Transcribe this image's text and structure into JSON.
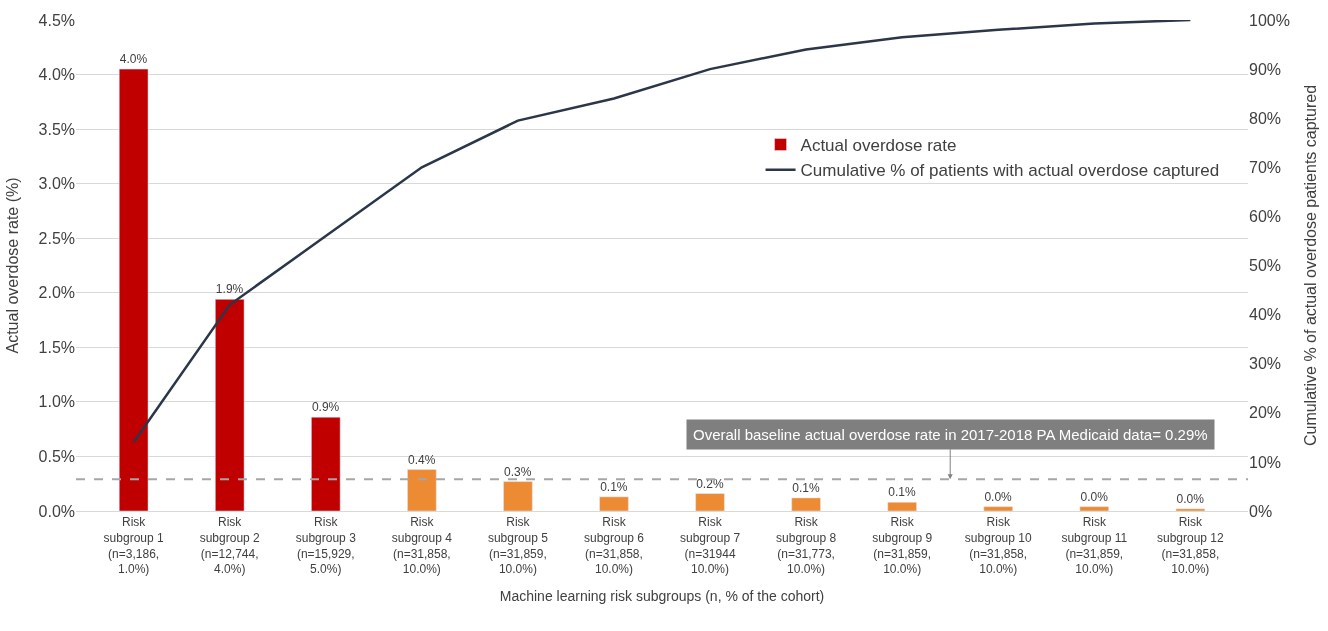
{
  "chart_data": {
    "type": "bar",
    "categories": [
      "Risk\nsubgroup 1\n(n=3,186,\n1.0%)",
      "Risk\nsubgroup 2\n(n=12,744,\n4.0%)",
      "Risk\nsubgroup 3\n(n=15,929,\n5.0%)",
      "Risk\nsubgroup 4\n(n=31,858,\n10.0%)",
      "Risk\nsubgroup 5\n(n=31,859,\n10.0%)",
      "Risk\nsubgroup 6\n(n=31,858,\n10.0%)",
      "Risk\nsubgroup 7\n(n=31944\n10.0%)",
      "Risk\nsubgroup 8\n(n=31,773,\n10.0%)",
      "Risk\nsubgroup 9\n(n=31,859,\n10.0%)",
      "Risk\nsubgroup 10\n(n=31,858,\n10.0%)",
      "Risk\nsubgroup 11\n(n=31,859,\n10.0%)",
      "Risk\nsubgroup 12\n(n=31,858,\n10.0%)"
    ],
    "xlabel": "Machine learning risk subgroups (n, % of the cohort)",
    "ylabel": "Actual overdose rate (%)",
    "y2label": "Cumulative % of actual overdose patients captured",
    "series": [
      {
        "name": "Actual overdose rate",
        "colors": [
          "#c00000",
          "#c00000",
          "#c00000",
          "#ed8b35",
          "#ed8b35",
          "#ed8b35",
          "#ed8b35",
          "#ed8b35",
          "#ed8b35",
          "#ed8b35",
          "#ed8b35",
          "#ed8b35"
        ],
        "values": [
          4.05,
          1.94,
          0.86,
          0.38,
          0.27,
          0.13,
          0.16,
          0.12,
          0.08,
          0.04,
          0.04,
          0.02
        ],
        "value_labels": [
          "4.0%",
          "1.9%",
          "0.9%",
          "0.4%",
          "0.3%",
          "0.1%",
          "0.2%",
          "0.1%",
          "0.1%",
          "0.0%",
          "0.0%",
          "0.0%"
        ]
      },
      {
        "type": "line",
        "name": "Cumulative % of patients with actual overdose captured",
        "color": "#2b3648",
        "axis": "y2",
        "values": [
          14,
          42,
          56,
          70,
          79.5,
          84,
          90,
          94,
          96.5,
          98,
          99.3,
          100
        ]
      }
    ],
    "ylim": [
      0,
      4.5
    ],
    "yticks": [
      {
        "value": 0,
        "label": "0.0%"
      },
      {
        "value": 0.5,
        "label": "0.5%"
      },
      {
        "value": 1,
        "label": "1.0%"
      },
      {
        "value": 1.5,
        "label": "1.5%"
      },
      {
        "value": 2,
        "label": "2.0%"
      },
      {
        "value": 2.5,
        "label": "2.5%"
      },
      {
        "value": 3,
        "label": "3.0%"
      },
      {
        "value": 3.5,
        "label": "3.5%"
      },
      {
        "value": 4,
        "label": "4.0%"
      },
      {
        "value": 4.5,
        "label": "4.5%"
      }
    ],
    "y2lim": [
      0,
      100
    ],
    "y2ticks": [
      {
        "value": 0,
        "label": "0%"
      },
      {
        "value": 10,
        "label": "10%"
      },
      {
        "value": 20,
        "label": "20%"
      },
      {
        "value": 30,
        "label": "30%"
      },
      {
        "value": 40,
        "label": "40%"
      },
      {
        "value": 50,
        "label": "50%"
      },
      {
        "value": 60,
        "label": "60%"
      },
      {
        "value": 70,
        "label": "70%"
      },
      {
        "value": 80,
        "label": "80%"
      },
      {
        "value": 90,
        "label": "90%"
      },
      {
        "value": 100,
        "label": "100%"
      }
    ],
    "ref_lines": [
      {
        "axis": "y",
        "value": 0.29,
        "label": "Overall baseline actual overdose rate in 2017-2018 PA Medicaid data= 0.29%",
        "color": "#a6a6a6",
        "line_style": "dashed"
      }
    ],
    "grid": "y",
    "legend": "right",
    "marker": "none",
    "line_style": "solid"
  }
}
